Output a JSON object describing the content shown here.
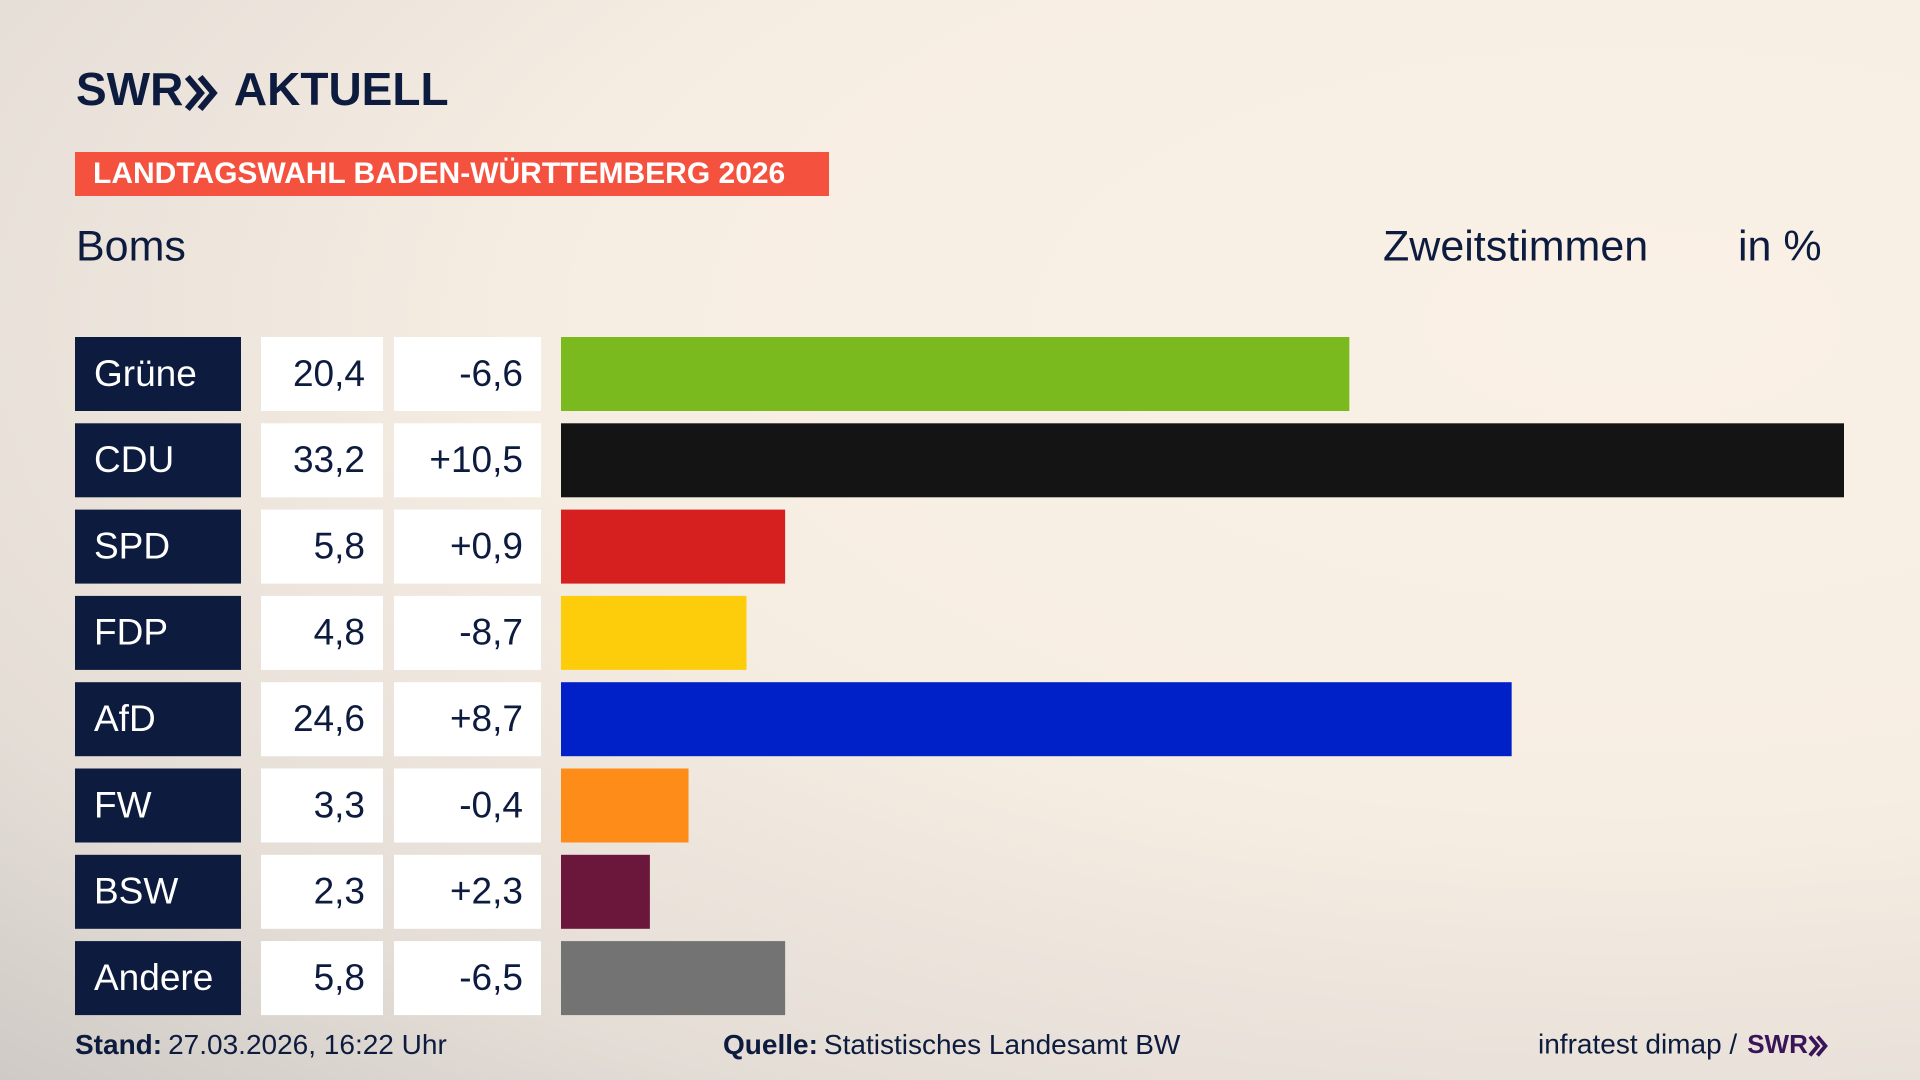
{
  "header": {
    "brand": "SWR",
    "section": "AKTUELL",
    "banner": "LANDTAGSWAHL BADEN-WÜRTTEMBERG 2026"
  },
  "chart_data": {
    "type": "bar",
    "title": "Boms",
    "value_label": "Zweitstimmen",
    "unit_label": "in %",
    "categories": [
      "Grüne",
      "CDU",
      "SPD",
      "FDP",
      "AfD",
      "FW",
      "BSW",
      "Andere"
    ],
    "values": [
      20.4,
      33.2,
      5.8,
      4.8,
      24.6,
      3.3,
      2.3,
      5.8
    ],
    "value_labels": [
      "20,4",
      "33,2",
      "5,8",
      "4,8",
      "24,6",
      "3,3",
      "2,3",
      "5,8"
    ],
    "changes": [
      -6.6,
      10.5,
      0.9,
      -8.7,
      8.7,
      -0.4,
      2.3,
      -6.5
    ],
    "change_labels": [
      "-6,6",
      "+10,5",
      "+0,9",
      "-8,7",
      "+8,7",
      "-0,4",
      "+2,3",
      "-6,5"
    ],
    "colors": [
      "#7aba1e",
      "#141414",
      "#d6201f",
      "#fdcd0b",
      "#0020c8",
      "#fd8c19",
      "#6a173b",
      "#737373"
    ]
  },
  "footer": {
    "stand_label": "Stand:",
    "stand": "27.03.2026, 16:22 Uhr",
    "source_label": "Quelle:",
    "source": "Statistisches Landesamt BW",
    "credit": "infratest dimap /",
    "credit_brand": "SWR"
  }
}
